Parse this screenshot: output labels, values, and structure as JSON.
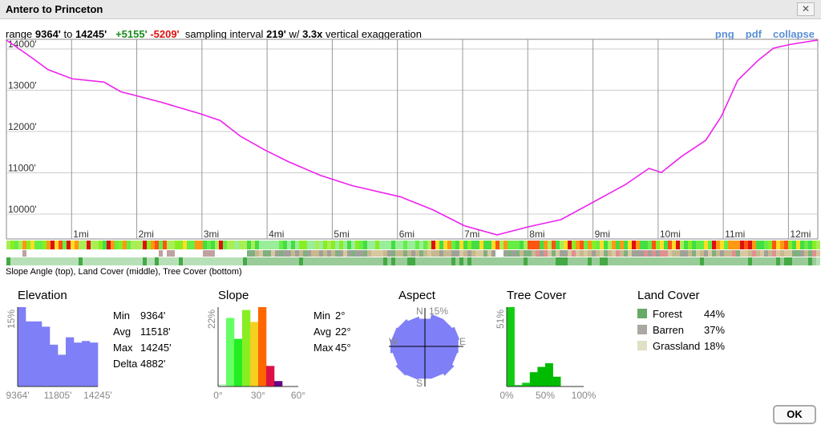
{
  "window": {
    "title": "Antero to Princeton",
    "close": "✕"
  },
  "summary": {
    "range_label": "range",
    "min": "9364'",
    "to": "to",
    "max": "14245'",
    "gain": "+5155'",
    "loss": "-5209'",
    "sampling_label": "sampling interval",
    "interval": "219'",
    "w": "w/",
    "exaggeration": "3.3x",
    "vert_label": "vertical exaggeration"
  },
  "links": {
    "png": "png",
    "pdf": "pdf",
    "collapse": "collapse"
  },
  "band_caption": "Slope Angle (top), Land Cover (middle), Tree Cover (bottom)",
  "colors": {
    "profile": "#ee22ee",
    "hist": "#7f7ff7",
    "tree": "#11cc11",
    "link": "#5b8fd6"
  },
  "chart_data": [
    {
      "type": "line",
      "title": "Elevation profile",
      "ylim": [
        9364,
        14245
      ],
      "xlim": [
        0,
        12.45
      ],
      "y_ticks": [
        "10000'",
        "11000'",
        "12000'",
        "13000'",
        "14000'"
      ],
      "y_tick_values": [
        10000,
        11000,
        12000,
        13000,
        14000
      ],
      "x_ticks": [
        "1mi",
        "2mi",
        "3mi",
        "4mi",
        "5mi",
        "6mi",
        "7mi",
        "8mi",
        "9mi",
        "10mi",
        "11mi",
        "12mi"
      ],
      "points": [
        [
          0,
          14245
        ],
        [
          0.39,
          13670
        ],
        [
          0.64,
          13380
        ],
        [
          1.01,
          13160
        ],
        [
          1.5,
          13080
        ],
        [
          1.75,
          12850
        ],
        [
          2.36,
          12600
        ],
        [
          2.98,
          12310
        ],
        [
          3.28,
          12150
        ],
        [
          3.59,
          11770
        ],
        [
          3.96,
          11440
        ],
        [
          4.33,
          11150
        ],
        [
          4.82,
          10820
        ],
        [
          5.31,
          10570
        ],
        [
          6.05,
          10300
        ],
        [
          6.54,
          9990
        ],
        [
          7.03,
          9600
        ],
        [
          7.53,
          9380
        ],
        [
          8.02,
          9580
        ],
        [
          8.51,
          9750
        ],
        [
          9.0,
          10170
        ],
        [
          9.5,
          10600
        ],
        [
          9.86,
          10990
        ],
        [
          10.05,
          10890
        ],
        [
          10.36,
          11280
        ],
        [
          10.73,
          11670
        ],
        [
          10.97,
          12250
        ],
        [
          11.22,
          13120
        ],
        [
          11.53,
          13600
        ],
        [
          11.77,
          13900
        ],
        [
          12.02,
          13990
        ],
        [
          12.45,
          14245
        ]
      ]
    },
    {
      "type": "bar",
      "title": "Elevation",
      "ymax_label": "15%",
      "ymax": 15,
      "x_labels": [
        "9364'",
        "11805'",
        "14245'"
      ],
      "values": [
        15,
        12.3,
        12.3,
        11.3,
        7.9,
        6.0,
        9.3,
        8.3,
        8.6,
        8.3
      ],
      "stats": [
        [
          "Min",
          "9364'"
        ],
        [
          "Avg",
          "11518'"
        ],
        [
          "Max",
          "14245'"
        ],
        [
          "Delta",
          "4882'"
        ]
      ]
    },
    {
      "type": "bar",
      "title": "Slope",
      "ymax_label": "22%",
      "ymax": 22,
      "x_labels": [
        "0°",
        "30°",
        "60°"
      ],
      "values": [
        0.7,
        19.0,
        13.2,
        21.2,
        17.9,
        22,
        5.7,
        1.5
      ],
      "bar_colors": [
        "#c8f5c8",
        "#66ff66",
        "#22ee22",
        "#88ee22",
        "#f5d020",
        "#ff6600",
        "#dd1144",
        "#660088"
      ],
      "stats": [
        [
          "Min",
          "2°"
        ],
        [
          "Avg",
          "22°"
        ],
        [
          "Max",
          "45°"
        ]
      ]
    },
    {
      "type": "polar",
      "title": "Aspect",
      "max_label": "15%",
      "directions": [
        "N",
        "E",
        "S",
        "W"
      ],
      "values": [
        12,
        14,
        14,
        15,
        14.5,
        14,
        15,
        14,
        14,
        14.5,
        15,
        14,
        15,
        14.5,
        14,
        13
      ]
    },
    {
      "type": "bar",
      "title": "Tree Cover",
      "ymax_label": "51%",
      "ymax": 51,
      "x_labels": [
        "0%",
        "50%",
        "100%"
      ],
      "values": [
        51,
        0.9,
        2.4,
        9.2,
        12.6,
        15,
        6.3,
        0,
        0,
        0
      ]
    },
    {
      "type": "legend",
      "title": "Land Cover",
      "items": [
        {
          "label": "Forest",
          "value": "44%",
          "color": "#66aa66"
        },
        {
          "label": "Barren",
          "value": "37%",
          "color": "#aaa8a0"
        },
        {
          "label": "Grassland",
          "value": "18%",
          "color": "#e0e0c4"
        }
      ]
    }
  ],
  "ok": "OK"
}
